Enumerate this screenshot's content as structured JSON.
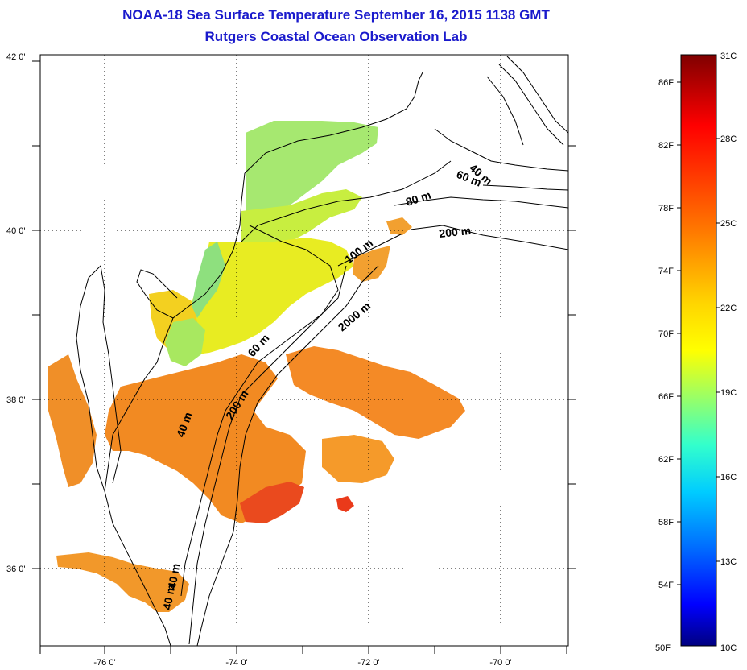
{
  "header": {
    "title": "NOAA-18 Sea Surface Temperature September 16, 2015 1138 GMT",
    "subtitle": "Rutgers Coastal Ocean Observation Lab"
  },
  "map": {
    "lon_range": [
      -77,
      -69
    ],
    "lat_range": [
      35,
      42
    ],
    "x_ticks": [
      {
        "lon": -76,
        "label": "-76 0'"
      },
      {
        "lon": -74,
        "label": "-74 0'"
      },
      {
        "lon": -72,
        "label": "-72 0'"
      },
      {
        "lon": -70,
        "label": "-70 0'"
      }
    ],
    "y_ticks": [
      {
        "lat": 42,
        "label": "42 0'"
      },
      {
        "lat": 40,
        "label": "40 0'"
      },
      {
        "lat": 38,
        "label": "38 0'"
      },
      {
        "lat": 36,
        "label": "36 0'"
      }
    ],
    "grid": "dotted",
    "contour_labels": [
      {
        "id": "40m-north",
        "text": "40 m"
      },
      {
        "id": "60m-north",
        "text": "60 m"
      },
      {
        "id": "80m-north",
        "text": "80 m"
      },
      {
        "id": "200m-north",
        "text": "200 m"
      },
      {
        "id": "100m",
        "text": "100 m"
      },
      {
        "id": "2000m",
        "text": "2000 m"
      },
      {
        "id": "60m-mid",
        "text": "60 m"
      },
      {
        "id": "200m-mid",
        "text": "200 m"
      },
      {
        "id": "40m-mid",
        "text": "40 m"
      },
      {
        "id": "40m-south1",
        "text": "40 m"
      },
      {
        "id": "40m-south2",
        "text": "40 m"
      }
    ]
  },
  "colorbar": {
    "fahrenheit_labels": [
      "86F",
      "82F",
      "78F",
      "74F",
      "70F",
      "66F",
      "62F",
      "58F",
      "54F",
      "50F"
    ],
    "celsius_labels": [
      "31C",
      "28C",
      "25C",
      "22C",
      "19C",
      "16C",
      "13C",
      "10C"
    ],
    "colors": {
      "top": "#7f0000",
      "red": "#ff1a00",
      "orange": "#ff8800",
      "yellow": "#ffff00",
      "green": "#80ff80",
      "cyan": "#00ffff",
      "blue": "#0080ff",
      "bottom": "#000080"
    }
  }
}
